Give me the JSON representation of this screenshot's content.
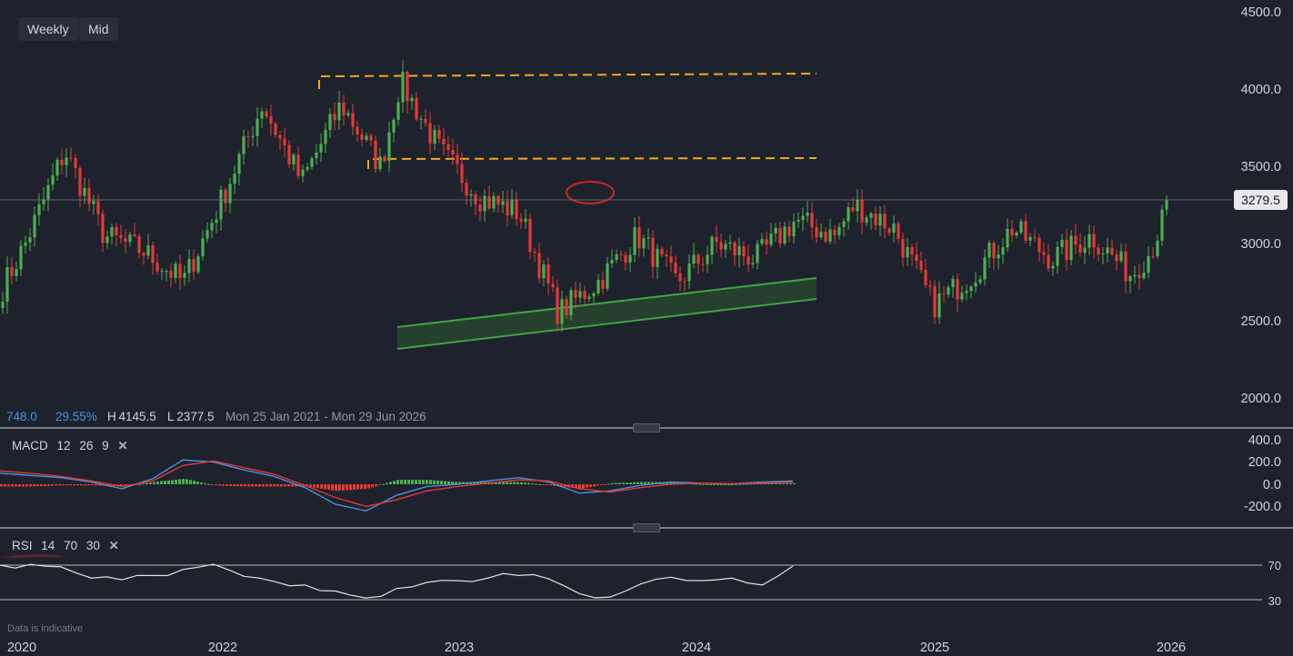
{
  "toolbar": {
    "interval_label": "Weekly",
    "price_type_label": "Mid"
  },
  "stats": {
    "change": "748.0",
    "change_pct": "29.55%",
    "high_label": "H",
    "high_value": "4145.5",
    "low_label": "L",
    "low_value": "2377.5",
    "date_range": "Mon 25 Jan 2021 - Mon 29 Jun 2026"
  },
  "last_price": "3279.5",
  "macd": {
    "label": "MACD",
    "p1": "12",
    "p2": "26",
    "p3": "9"
  },
  "rsi": {
    "label": "RSI",
    "p1": "14",
    "p2": "70",
    "p3": "30"
  },
  "footer_note": "Data is indicative",
  "colors": {
    "background": "#1e222d",
    "up": "#4caf50",
    "down": "#e53935",
    "resistance": "#f5a623",
    "channel": "#43a047",
    "macd_line": "#4a90e2",
    "signal_line": "#e53935",
    "rsi_line": "#e0e0e0"
  },
  "chart_data": {
    "type": "candlestick",
    "price_axis": {
      "ticks": [
        "4500.0",
        "4000.0",
        "3500.0",
        "3000.0",
        "2500.0",
        "2000.0"
      ]
    },
    "time_axis": {
      "ticks": [
        "2020",
        "2022",
        "2023",
        "2024",
        "2025",
        "2026"
      ]
    },
    "close_path": [
      [
        "2021-01",
        2500
      ],
      [
        "2021-03",
        3000
      ],
      [
        "2021-05",
        3600
      ],
      [
        "2021-07",
        3050
      ],
      [
        "2021-09",
        2950
      ],
      [
        "2021-11",
        2750
      ],
      [
        "2022-01",
        3300
      ],
      [
        "2022-03",
        3900
      ],
      [
        "2022-05",
        3400
      ],
      [
        "2022-07",
        3900
      ],
      [
        "2022-09",
        3500
      ],
      [
        "2022-10",
        4050
      ],
      [
        "2022-12",
        3600
      ],
      [
        "2023-02",
        3300
      ],
      [
        "2023-04",
        3200
      ],
      [
        "2023-06",
        2550
      ],
      [
        "2023-08",
        2750
      ],
      [
        "2023-10",
        3050
      ],
      [
        "2023-12",
        2750
      ],
      [
        "2024-02",
        3000
      ],
      [
        "2024-04",
        2900
      ],
      [
        "2024-06",
        3150
      ],
      [
        "2024-08",
        3050
      ],
      [
        "2024-09",
        3250
      ],
      [
        "2024-11",
        3100
      ],
      [
        "2025-01",
        2600
      ],
      [
        "2025-03",
        2800
      ],
      [
        "2025-05",
        3100
      ],
      [
        "2025-07",
        2900
      ],
      [
        "2025-09",
        3050
      ],
      [
        "2025-11",
        2800
      ],
      [
        "2025-12",
        2950
      ],
      [
        "2026-01",
        3279.5
      ]
    ],
    "annotations": {
      "resistance_1": 4080,
      "resistance_2": 3550,
      "channel_upper": {
        "start": 2470,
        "end": 2770
      },
      "channel_lower": {
        "start": 2330,
        "end": 2630
      },
      "highlighted_level": 3330
    },
    "macd": {
      "axis_ticks": [
        "400.0",
        "200.0",
        "0.0",
        "-200.0"
      ],
      "macd_path": [
        100,
        80,
        60,
        20,
        -40,
        50,
        220,
        200,
        130,
        70,
        -30,
        -180,
        -240,
        -100,
        -20,
        0,
        30,
        60,
        20,
        -80,
        -60,
        -10,
        20,
        10,
        5,
        20,
        30
      ],
      "signal_path": [
        120,
        100,
        70,
        30,
        -20,
        30,
        170,
        210,
        150,
        90,
        -10,
        -120,
        -200,
        -140,
        -60,
        -20,
        10,
        40,
        30,
        -40,
        -70,
        -30,
        0,
        10,
        5,
        10,
        20
      ]
    },
    "rsi": {
      "axis_ticks": [
        "70",
        "30"
      ],
      "values": [
        70,
        71,
        68,
        55,
        53,
        58,
        65,
        71,
        57,
        51,
        47,
        40,
        32,
        43,
        50,
        52,
        55,
        58,
        54,
        37,
        33,
        48,
        56,
        52,
        55,
        47,
        69
      ]
    }
  }
}
